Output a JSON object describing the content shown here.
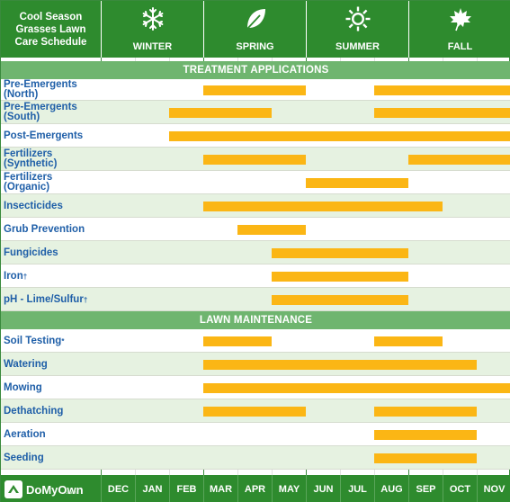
{
  "title": "Cool Season\nGrasses Lawn\nCare Schedule",
  "seasons": [
    {
      "label": "WINTER",
      "icon": "snowflake-icon",
      "start_month": 0
    },
    {
      "label": "SPRING",
      "icon": "leaf-icon",
      "start_month": 3
    },
    {
      "label": "SUMMER",
      "icon": "sun-icon",
      "start_month": 6
    },
    {
      "label": "FALL",
      "icon": "maple-leaf-icon",
      "start_month": 9
    }
  ],
  "months": [
    "DEC",
    "JAN",
    "FEB",
    "MAR",
    "APR",
    "MAY",
    "JUN",
    "JUL",
    "AUG",
    "SEP",
    "OCT",
    "NOV"
  ],
  "footer": {
    "brand": "DoMyOwn",
    "brand_sub": ".com"
  },
  "colors": {
    "header_green": "#2e8b2e",
    "section_green": "#6fb56f",
    "row_alt": "#e6f2e1",
    "bar": "#fbb615",
    "label_blue": "#1f5fa8"
  },
  "chart_data": {
    "type": "gantt",
    "sections": [
      {
        "title": "TREATMENT APPLICATIONS",
        "rows": [
          {
            "label": "Pre-Emergents\n(North)",
            "note": "",
            "ranges": [
              [
                "MAR",
                "MAY"
              ],
              [
                "AUG",
                "NOV"
              ]
            ]
          },
          {
            "label": "Pre-Emergents\n(South)",
            "note": "",
            "ranges": [
              [
                "FEB",
                "APR"
              ],
              [
                "AUG",
                "NOV"
              ]
            ]
          },
          {
            "label": "Post-Emergents",
            "note": "",
            "ranges": [
              [
                "FEB",
                "NOV"
              ]
            ]
          },
          {
            "label": "Fertilizers\n(Synthetic)",
            "note": "",
            "ranges": [
              [
                "MAR",
                "MAY"
              ],
              [
                "SEP",
                "NOV"
              ]
            ]
          },
          {
            "label": "Fertilizers\n(Organic)",
            "note": "",
            "ranges": [
              [
                "JUN",
                "AUG"
              ]
            ]
          },
          {
            "label": "Insecticides",
            "note": "",
            "ranges": [
              [
                "MAR",
                "SEP"
              ]
            ]
          },
          {
            "label": "Grub Prevention",
            "note": "",
            "ranges": [
              [
                "APR",
                "MAY"
              ]
            ]
          },
          {
            "label": "Fungicides",
            "note": "",
            "ranges": [
              [
                "MAY",
                "AUG"
              ]
            ]
          },
          {
            "label": "Iron",
            "note": "†",
            "ranges": [
              [
                "MAY",
                "AUG"
              ]
            ]
          },
          {
            "label": "pH - Lime/Sulfur",
            "note": "†",
            "ranges": [
              [
                "MAY",
                "AUG"
              ]
            ]
          }
        ]
      },
      {
        "title": "LAWN MAINTENANCE",
        "rows": [
          {
            "label": "Soil Testing",
            "note": "*",
            "ranges": [
              [
                "MAR",
                "APR"
              ],
              [
                "AUG",
                "SEP"
              ]
            ]
          },
          {
            "label": "Watering",
            "note": "",
            "ranges": [
              [
                "MAR",
                "OCT"
              ]
            ]
          },
          {
            "label": "Mowing",
            "note": "",
            "ranges": [
              [
                "MAR",
                "NOV"
              ]
            ]
          },
          {
            "label": "Dethatching",
            "note": "",
            "ranges": [
              [
                "MAR",
                "MAY"
              ],
              [
                "AUG",
                "OCT"
              ]
            ]
          },
          {
            "label": "Aeration",
            "note": "",
            "ranges": [
              [
                "AUG",
                "OCT"
              ]
            ]
          },
          {
            "label": "Seeding",
            "note": "",
            "ranges": [
              [
                "AUG",
                "OCT"
              ]
            ]
          }
        ]
      }
    ]
  }
}
